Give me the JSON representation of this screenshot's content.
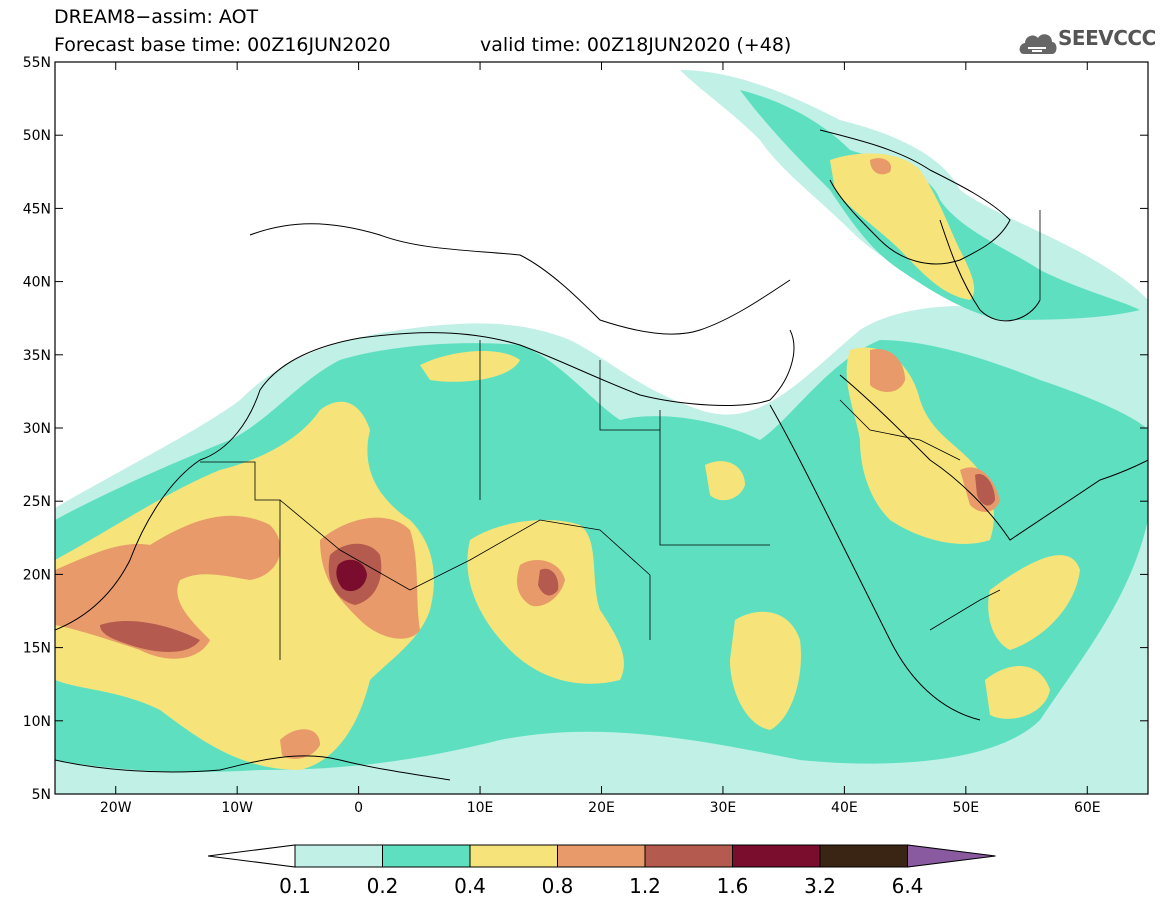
{
  "header": {
    "title": "DREAM8−assim: AOT",
    "base_time": "Forecast base time: 00Z16JUN2020",
    "valid_time": "valid time: 00Z18JUN2020 (+48)",
    "logo_text": "SEEVCCC"
  },
  "map": {
    "lon_range": [
      -25,
      65
    ],
    "lat_range": [
      5,
      55
    ],
    "x_ticks": [
      "20W",
      "10W",
      "0",
      "10E",
      "20E",
      "30E",
      "40E",
      "50E",
      "60E"
    ],
    "y_ticks": [
      "55N",
      "50N",
      "45N",
      "40N",
      "35N",
      "30N",
      "25N",
      "20N",
      "15N",
      "10N",
      "5N"
    ]
  },
  "colorbar": {
    "levels": [
      "0.1",
      "0.2",
      "0.4",
      "0.8",
      "1.2",
      "1.6",
      "3.2",
      "6.4"
    ],
    "colors": [
      "#c0f0e6",
      "#5ee0c0",
      "#f6e47a",
      "#e89a6a",
      "#b45a4e",
      "#7a0c2e",
      "#3a2414",
      "#8a5aa0"
    ],
    "below_color": "#ffffff"
  }
}
